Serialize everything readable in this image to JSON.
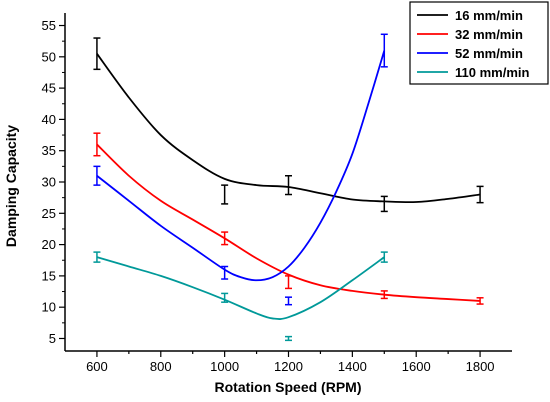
{
  "chart_data": {
    "type": "line",
    "xlabel": "Rotation Speed (RPM)",
    "ylabel": "Damping Capacity",
    "xlim": [
      500,
      1900
    ],
    "ylim": [
      3,
      57
    ],
    "xticks": [
      600,
      800,
      1000,
      1200,
      1400,
      1600,
      1800
    ],
    "yticks": [
      5,
      10,
      15,
      20,
      25,
      30,
      35,
      40,
      45,
      50,
      55
    ],
    "legend_position": "top-right",
    "grid": false,
    "series": [
      {
        "name": "16 mm/min",
        "color": "#000000",
        "points": [
          {
            "x": 600,
            "y": 50.5,
            "err": 2.5
          },
          {
            "x": 1000,
            "y": 28,
            "err": 1.5
          },
          {
            "x": 1200,
            "y": 29.5,
            "err": 1.5
          },
          {
            "x": 1500,
            "y": 26.5,
            "err": 1.2
          },
          {
            "x": 1800,
            "y": 28,
            "err": 1.3
          }
        ],
        "curve": [
          [
            600,
            50.5
          ],
          [
            700,
            43.5
          ],
          [
            800,
            37.5
          ],
          [
            900,
            33.5
          ],
          [
            1000,
            30.5
          ],
          [
            1100,
            29.5
          ],
          [
            1200,
            29.2
          ],
          [
            1300,
            28.2
          ],
          [
            1400,
            27.2
          ],
          [
            1500,
            26.9
          ],
          [
            1600,
            26.8
          ],
          [
            1700,
            27.3
          ],
          [
            1800,
            28
          ]
        ]
      },
      {
        "name": "32 mm/min",
        "color": "#ff0000",
        "points": [
          {
            "x": 600,
            "y": 36,
            "err": 1.8
          },
          {
            "x": 1000,
            "y": 21,
            "err": 1.0
          },
          {
            "x": 1200,
            "y": 14,
            "err": 1.0
          },
          {
            "x": 1500,
            "y": 12,
            "err": 0.6
          },
          {
            "x": 1800,
            "y": 11,
            "err": 0.5
          }
        ],
        "curve": [
          [
            600,
            36
          ],
          [
            700,
            31
          ],
          [
            800,
            27
          ],
          [
            900,
            24
          ],
          [
            1000,
            21
          ],
          [
            1100,
            17.8
          ],
          [
            1200,
            15.2
          ],
          [
            1300,
            13.5
          ],
          [
            1400,
            12.6
          ],
          [
            1500,
            12
          ],
          [
            1600,
            11.6
          ],
          [
            1700,
            11.3
          ],
          [
            1800,
            11
          ]
        ]
      },
      {
        "name": "52 mm/min",
        "color": "#0000ff",
        "points": [
          {
            "x": 600,
            "y": 31,
            "err": 1.5
          },
          {
            "x": 1000,
            "y": 15.5,
            "err": 1.0
          },
          {
            "x": 1200,
            "y": 11,
            "err": 0.6
          },
          {
            "x": 1500,
            "y": 51,
            "err": 2.6
          }
        ],
        "curve": [
          [
            600,
            31
          ],
          [
            700,
            27
          ],
          [
            800,
            23
          ],
          [
            900,
            19.5
          ],
          [
            1000,
            16
          ],
          [
            1050,
            14.8
          ],
          [
            1100,
            14.3
          ],
          [
            1150,
            14.8
          ],
          [
            1200,
            16.5
          ],
          [
            1250,
            19.5
          ],
          [
            1300,
            23.5
          ],
          [
            1350,
            28.5
          ],
          [
            1400,
            34.5
          ],
          [
            1450,
            42.5
          ],
          [
            1500,
            51
          ]
        ]
      },
      {
        "name": "110 mm/min",
        "color": "#009999",
        "points": [
          {
            "x": 600,
            "y": 18,
            "err": 0.8
          },
          {
            "x": 1000,
            "y": 11.5,
            "err": 0.7
          },
          {
            "x": 1200,
            "y": 5,
            "err": 0.3
          },
          {
            "x": 1500,
            "y": 18,
            "err": 0.8
          }
        ],
        "curve": [
          [
            600,
            18
          ],
          [
            700,
            16.5
          ],
          [
            800,
            15
          ],
          [
            900,
            13.2
          ],
          [
            1000,
            11.2
          ],
          [
            1100,
            9
          ],
          [
            1150,
            8.2
          ],
          [
            1200,
            8.4
          ],
          [
            1300,
            10.8
          ],
          [
            1400,
            14.3
          ],
          [
            1500,
            18
          ]
        ]
      }
    ]
  }
}
